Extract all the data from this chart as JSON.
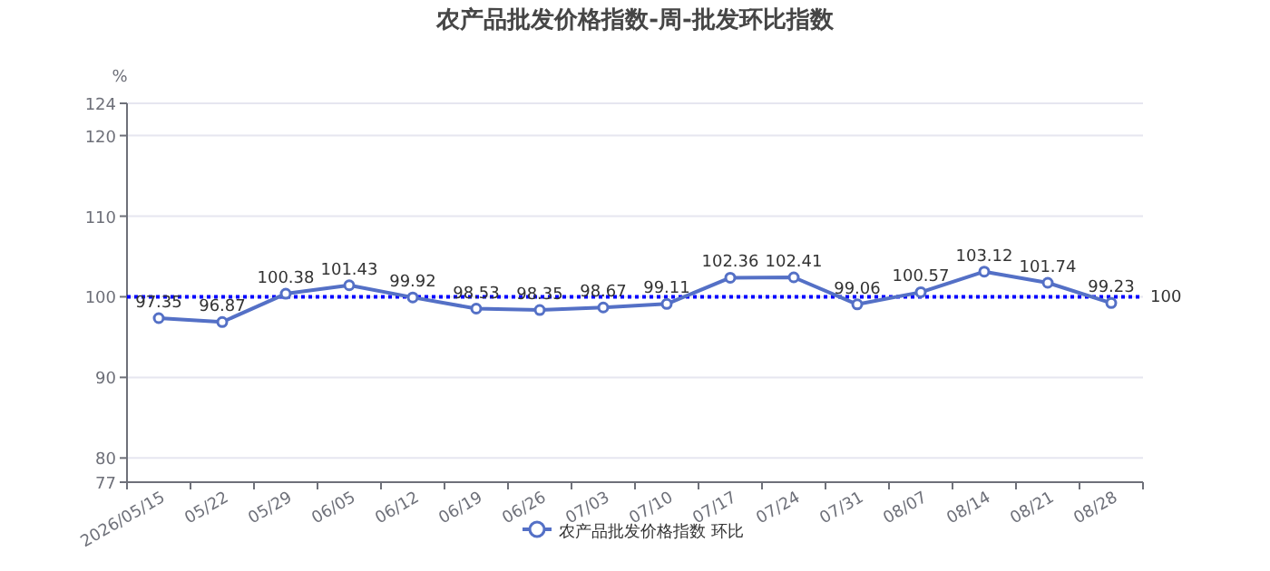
{
  "chart_data": {
    "type": "line",
    "title": "农产品批发价格指数-周-批发环比指数",
    "ylabel": "%",
    "categories": [
      "2026/05/15",
      "05/22",
      "05/29",
      "06/05",
      "06/12",
      "06/19",
      "06/26",
      "07/03",
      "07/10",
      "07/17",
      "07/24",
      "07/31",
      "08/07",
      "08/14",
      "08/21",
      "08/28"
    ],
    "series": [
      {
        "name": "农产品批发价格指数 环比",
        "color": "#5470c6",
        "values": [
          97.35,
          96.87,
          100.38,
          101.43,
          99.92,
          98.53,
          98.35,
          98.67,
          99.11,
          102.36,
          102.41,
          99.06,
          100.57,
          103.12,
          101.74,
          99.23
        ]
      }
    ],
    "ylim": [
      77,
      124
    ],
    "yticks": [
      77,
      80,
      90,
      100,
      110,
      120,
      124
    ],
    "grid": "y",
    "data_labels": true,
    "marker": "circle",
    "line_style": "solid",
    "legend": "bottom",
    "ref_lines": [
      {
        "axis": "y",
        "value": 100,
        "label": "100",
        "color": "#0000ff",
        "line_style": "dotted"
      }
    ]
  }
}
